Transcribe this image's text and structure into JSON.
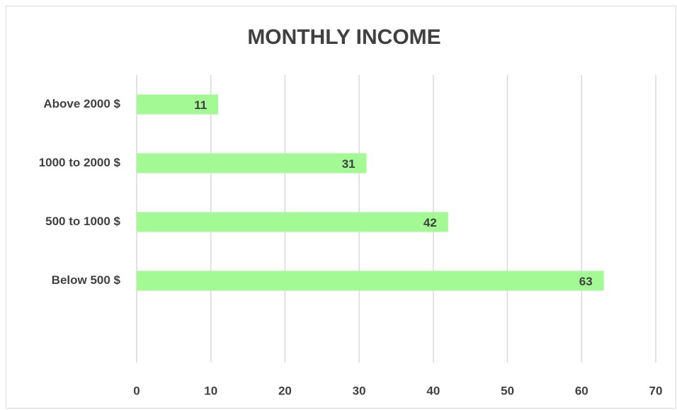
{
  "chart_data": {
    "type": "bar",
    "orientation": "horizontal",
    "title": "MONTHLY INCOME",
    "categories": [
      "Above 2000 $",
      "1000 to 2000 $",
      "500 to 1000 $",
      "Below 500 $"
    ],
    "values": [
      11,
      31,
      42,
      63
    ],
    "color": "#a3f993",
    "xlim": [
      0,
      70
    ],
    "xticks": [
      0,
      10,
      20,
      30,
      40,
      50,
      60,
      70
    ],
    "grid": true
  }
}
